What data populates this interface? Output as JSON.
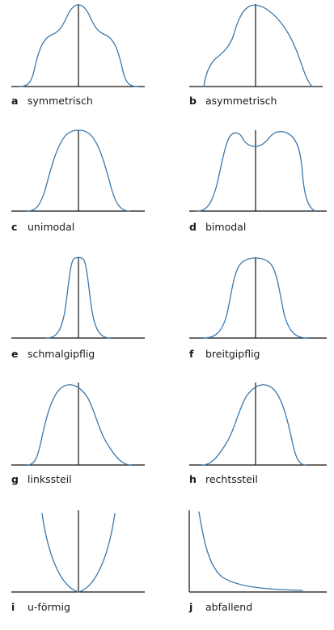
{
  "panels": [
    {
      "letter": "a",
      "label": "symmetrisch"
    },
    {
      "letter": "b",
      "label": "asymmetrisch"
    },
    {
      "letter": "c",
      "label": "unimodal"
    },
    {
      "letter": "d",
      "label": "bimodal"
    },
    {
      "letter": "e",
      "label": "schmalgipflig"
    },
    {
      "letter": "f",
      "label": "breitgipflig"
    },
    {
      "letter": "g",
      "label": "linkssteil"
    },
    {
      "letter": "h",
      "label": "rechtssteil"
    },
    {
      "letter": "i",
      "label": "u-förmig"
    },
    {
      "letter": "j",
      "label": "abfallend"
    }
  ],
  "colors": {
    "curve": "#3a78ad",
    "axis": "#111111",
    "text": "#1a1a1a"
  }
}
